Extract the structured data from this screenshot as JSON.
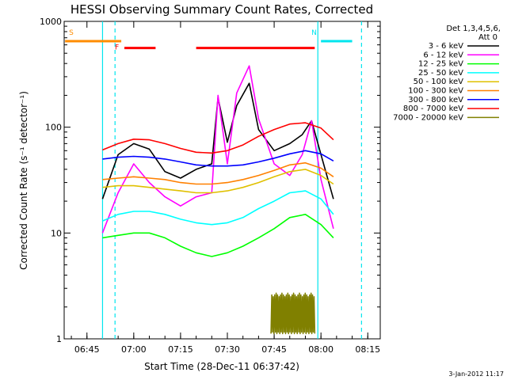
{
  "chart_data": {
    "type": "line",
    "title": "HESSI Observing Summary Count Rates, Corrected",
    "xlabel": "Start Time (28-Dec-11 06:37:42)",
    "ylabel": "Corrected Count Rate (s⁻¹ detector⁻¹)",
    "y_scale": "log",
    "ylim": [
      1,
      1000
    ],
    "xlim": [
      "06:37:42",
      "08:19:00"
    ],
    "x_ticks": [
      "06:45",
      "07:00",
      "07:15",
      "07:30",
      "07:45",
      "08:00",
      "08:15"
    ],
    "y_ticks": [
      "1",
      "10",
      "100",
      "1000"
    ],
    "legend_header": [
      "Det 1,3,4,5,6,",
      "Att 0"
    ],
    "legend_position": "right",
    "timestamp": "3-Jan-2012 11:17",
    "data_start": "06:50",
    "data_end": "08:04",
    "flags": [
      {
        "label": "S",
        "color": "#ff8c00",
        "type": "SAA",
        "start": "06:38",
        "end": "06:56",
        "level": 650
      },
      {
        "label": "N",
        "color": "#00e5ee",
        "type": "Night",
        "start": "08:00",
        "end": "08:10",
        "level": 650
      },
      {
        "label": "F",
        "color": "#ff0000",
        "type": "Flare",
        "start": "06:57",
        "end": "07:07",
        "level": 560
      },
      {
        "label": "",
        "color": "#ff0000",
        "type": "Flare",
        "start": "07:20",
        "end": "07:58",
        "level": 560
      }
    ],
    "night_markers": [
      "06:54",
      "08:13"
    ],
    "saa_boundaries": [
      "06:50",
      "07:59"
    ],
    "series": [
      {
        "name": "3 - 6 keV",
        "color": "#000000",
        "x": [
          "06:50",
          "06:55",
          "07:00",
          "07:05",
          "07:10",
          "07:15",
          "07:20",
          "07:25",
          "07:27",
          "07:30",
          "07:33",
          "07:37",
          "07:40",
          "07:45",
          "07:50",
          "07:54",
          "07:57",
          "08:00",
          "08:04"
        ],
        "values": [
          21,
          55,
          70,
          62,
          38,
          33,
          40,
          45,
          190,
          72,
          160,
          260,
          95,
          60,
          70,
          85,
          115,
          55,
          21
        ]
      },
      {
        "name": "6 - 12 keV",
        "color": "#ff00ff",
        "x": [
          "06:50",
          "06:55",
          "07:00",
          "07:05",
          "07:10",
          "07:15",
          "07:20",
          "07:25",
          "07:27",
          "07:30",
          "07:33",
          "07:37",
          "07:40",
          "07:45",
          "07:50",
          "07:54",
          "07:57",
          "08:00",
          "08:04"
        ],
        "values": [
          10,
          24,
          45,
          30,
          22,
          18,
          22,
          24,
          200,
          45,
          210,
          380,
          120,
          45,
          35,
          55,
          115,
          32,
          11
        ]
      },
      {
        "name": "12 - 25 keV",
        "color": "#00ff00",
        "x": [
          "06:50",
          "06:55",
          "07:00",
          "07:05",
          "07:10",
          "07:15",
          "07:20",
          "07:25",
          "07:30",
          "07:35",
          "07:40",
          "07:45",
          "07:50",
          "07:55",
          "08:00",
          "08:04"
        ],
        "values": [
          9,
          9.5,
          10,
          10,
          9,
          7.5,
          6.5,
          6,
          6.5,
          7.5,
          9,
          11,
          14,
          15,
          12,
          9
        ]
      },
      {
        "name": "25 - 50 keV",
        "color": "#00ffff",
        "x": [
          "06:50",
          "06:55",
          "07:00",
          "07:05",
          "07:10",
          "07:15",
          "07:20",
          "07:25",
          "07:30",
          "07:35",
          "07:40",
          "07:45",
          "07:50",
          "07:55",
          "08:00",
          "08:04"
        ],
        "values": [
          13,
          15,
          16,
          16,
          15,
          13.5,
          12.5,
          12,
          12.5,
          14,
          17,
          20,
          24,
          25,
          21,
          15
        ]
      },
      {
        "name": "50 - 100 keV",
        "color": "#e0c000",
        "x": [
          "06:50",
          "06:55",
          "07:00",
          "07:05",
          "07:10",
          "07:15",
          "07:20",
          "07:25",
          "07:30",
          "07:35",
          "07:40",
          "07:45",
          "07:50",
          "07:55",
          "08:00",
          "08:04"
        ],
        "values": [
          27,
          28,
          28,
          27,
          26,
          25,
          24,
          24,
          25,
          27,
          30,
          34,
          38,
          40,
          35,
          29
        ]
      },
      {
        "name": "100 - 300 keV",
        "color": "#ff8000",
        "x": [
          "06:50",
          "06:55",
          "07:00",
          "07:05",
          "07:10",
          "07:15",
          "07:20",
          "07:25",
          "07:30",
          "07:35",
          "07:40",
          "07:45",
          "07:50",
          "07:55",
          "08:00",
          "08:04"
        ],
        "values": [
          32,
          33,
          34,
          33,
          32,
          30,
          29,
          29,
          30,
          32,
          35,
          39,
          44,
          46,
          41,
          34
        ]
      },
      {
        "name": "300 - 800 keV",
        "color": "#0000ff",
        "x": [
          "06:50",
          "06:55",
          "07:00",
          "07:05",
          "07:10",
          "07:15",
          "07:20",
          "07:25",
          "07:30",
          "07:35",
          "07:40",
          "07:45",
          "07:50",
          "07:55",
          "08:00",
          "08:04"
        ],
        "values": [
          50,
          52,
          53,
          52,
          50,
          47,
          44,
          43,
          43,
          44,
          47,
          51,
          56,
          60,
          56,
          48
        ]
      },
      {
        "name": "800 - 7000 keV",
        "color": "#ff0000",
        "x": [
          "06:50",
          "06:55",
          "07:00",
          "07:05",
          "07:10",
          "07:15",
          "07:20",
          "07:25",
          "07:30",
          "07:35",
          "07:40",
          "07:45",
          "07:50",
          "07:55",
          "08:00",
          "08:04"
        ],
        "values": [
          61,
          70,
          77,
          76,
          70,
          63,
          58,
          57,
          60,
          68,
          82,
          95,
          107,
          110,
          98,
          76
        ]
      },
      {
        "name": "7000 - 20000 keV",
        "color": "#808000",
        "x": [
          "07:44",
          "07:46",
          "07:48",
          "07:50",
          "07:52",
          "07:54",
          "07:56",
          "07:58"
        ],
        "values": [
          2.8,
          2.6,
          2.9,
          2.5,
          2.8,
          2.6,
          2.9,
          2.7
        ]
      }
    ]
  }
}
